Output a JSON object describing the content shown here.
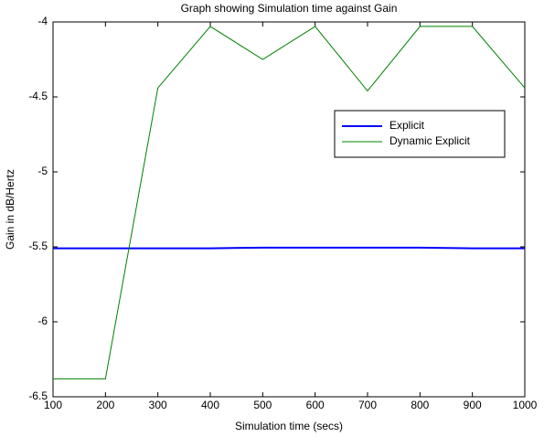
{
  "chart_data": {
    "type": "line",
    "title": "Graph showing Simulation time against Gain",
    "x_label": "Simulation time (secs)",
    "y_label": "Gain in dB/Hertz",
    "x": [
      100,
      200,
      300,
      400,
      500,
      600,
      700,
      800,
      900,
      1000
    ],
    "series": [
      {
        "name": "Explicit",
        "color": "#0000ff",
        "values": [
          -5.51,
          -5.51,
          -5.51,
          -5.51,
          -5.505,
          -5.505,
          -5.505,
          -5.505,
          -5.51,
          -5.51
        ]
      },
      {
        "name": "Dynamic Explicit",
        "color": "#008000",
        "values": [
          -6.38,
          -6.38,
          -4.44,
          -4.03,
          -4.25,
          -4.03,
          -4.46,
          -4.03,
          -4.03,
          -4.44
        ]
      }
    ],
    "xlim": [
      100,
      1000
    ],
    "xticks": [
      100,
      200,
      300,
      400,
      500,
      600,
      700,
      800,
      900,
      1000
    ],
    "ylim": [
      -6.5,
      -4
    ],
    "yticks": [
      -6.5,
      -6,
      -5.5,
      -5,
      -4.5,
      -4
    ],
    "grid": false,
    "legend_position": "upper right"
  }
}
